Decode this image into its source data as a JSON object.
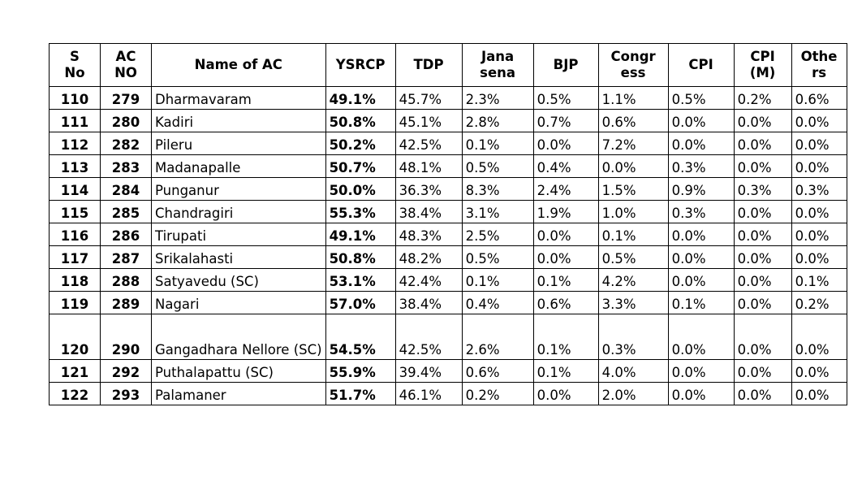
{
  "headers": [
    "S No",
    "AC NO",
    "Name of AC",
    "YSRCP",
    "TDP",
    "Jana sena",
    "BJP",
    "Congr ess",
    "CPI",
    "CPI (M)",
    "Othe rs"
  ],
  "header_lines": [
    [
      "S",
      "No"
    ],
    [
      "AC",
      "NO"
    ],
    [
      "Name of AC"
    ],
    [
      "YSRCP"
    ],
    [
      "TDP"
    ],
    [
      "Jana",
      "sena"
    ],
    [
      "BJP"
    ],
    [
      "Congr",
      "ess"
    ],
    [
      "CPI"
    ],
    [
      "CPI",
      "(M)"
    ],
    [
      "Othe",
      "rs"
    ]
  ],
  "rows": [
    {
      "sno": "110",
      "acno": "279",
      "name": "Dharmavaram",
      "ysrcp": "49.1%",
      "tdp": "45.7%",
      "janasena": "2.3%",
      "bjp": "0.5%",
      "congress": "1.1%",
      "cpi": "0.5%",
      "cpim": "0.2%",
      "others": "0.6%"
    },
    {
      "sno": "111",
      "acno": "280",
      "name": "Kadiri",
      "ysrcp": "50.8%",
      "tdp": "45.1%",
      "janasena": "2.8%",
      "bjp": "0.7%",
      "congress": "0.6%",
      "cpi": "0.0%",
      "cpim": "0.0%",
      "others": "0.0%"
    },
    {
      "sno": "112",
      "acno": "282",
      "name": "Pileru",
      "ysrcp": "50.2%",
      "tdp": "42.5%",
      "janasena": "0.1%",
      "bjp": "0.0%",
      "congress": "7.2%",
      "cpi": "0.0%",
      "cpim": "0.0%",
      "others": "0.0%"
    },
    {
      "sno": "113",
      "acno": "283",
      "name": "Madanapalle",
      "ysrcp": "50.7%",
      "tdp": "48.1%",
      "janasena": "0.5%",
      "bjp": "0.4%",
      "congress": "0.0%",
      "cpi": "0.3%",
      "cpim": "0.0%",
      "others": "0.0%"
    },
    {
      "sno": "114",
      "acno": "284",
      "name": "Punganur",
      "ysrcp": "50.0%",
      "tdp": "36.3%",
      "janasena": "8.3%",
      "bjp": "2.4%",
      "congress": "1.5%",
      "cpi": "0.9%",
      "cpim": "0.3%",
      "others": "0.3%"
    },
    {
      "sno": "115",
      "acno": "285",
      "name": "Chandragiri",
      "ysrcp": "55.3%",
      "tdp": "38.4%",
      "janasena": "3.1%",
      "bjp": "1.9%",
      "congress": "1.0%",
      "cpi": "0.3%",
      "cpim": "0.0%",
      "others": "0.0%"
    },
    {
      "sno": "116",
      "acno": "286",
      "name": "Tirupati",
      "ysrcp": "49.1%",
      "tdp": "48.3%",
      "janasena": "2.5%",
      "bjp": "0.0%",
      "congress": "0.1%",
      "cpi": "0.0%",
      "cpim": "0.0%",
      "others": "0.0%"
    },
    {
      "sno": "117",
      "acno": "287",
      "name": "Srikalahasti",
      "ysrcp": "50.8%",
      "tdp": "48.2%",
      "janasena": "0.5%",
      "bjp": "0.0%",
      "congress": "0.5%",
      "cpi": "0.0%",
      "cpim": "0.0%",
      "others": "0.0%"
    },
    {
      "sno": "118",
      "acno": "288",
      "name": "Satyavedu (SC)",
      "ysrcp": "53.1%",
      "tdp": "42.4%",
      "janasena": "0.1%",
      "bjp": "0.1%",
      "congress": "4.2%",
      "cpi": "0.0%",
      "cpim": "0.0%",
      "others": "0.1%"
    },
    {
      "sno": "119",
      "acno": "289",
      "name": "Nagari",
      "ysrcp": "57.0%",
      "tdp": "38.4%",
      "janasena": "0.4%",
      "bjp": "0.6%",
      "congress": "3.3%",
      "cpi": "0.1%",
      "cpim": "0.0%",
      "others": "0.2%"
    },
    {
      "sno": "120",
      "acno": "290",
      "name": "Gangadhara Nellore (SC)",
      "ysrcp": "54.5%",
      "tdp": "42.5%",
      "janasena": "2.6%",
      "bjp": "0.1%",
      "congress": "0.3%",
      "cpi": "0.0%",
      "cpim": "0.0%",
      "others": "0.0%"
    },
    {
      "sno": "121",
      "acno": "292",
      "name": "Puthalapattu (SC)",
      "ysrcp": "55.9%",
      "tdp": "39.4%",
      "janasena": "0.6%",
      "bjp": "0.1%",
      "congress": "4.0%",
      "cpi": "0.0%",
      "cpim": "0.0%",
      "others": "0.0%"
    },
    {
      "sno": "122",
      "acno": "293",
      "name": "Palamaner",
      "ysrcp": "51.7%",
      "tdp": "46.1%",
      "janasena": "0.2%",
      "bjp": "0.0%",
      "congress": "2.0%",
      "cpi": "0.0%",
      "cpim": "0.0%",
      "others": "0.0%"
    }
  ]
}
